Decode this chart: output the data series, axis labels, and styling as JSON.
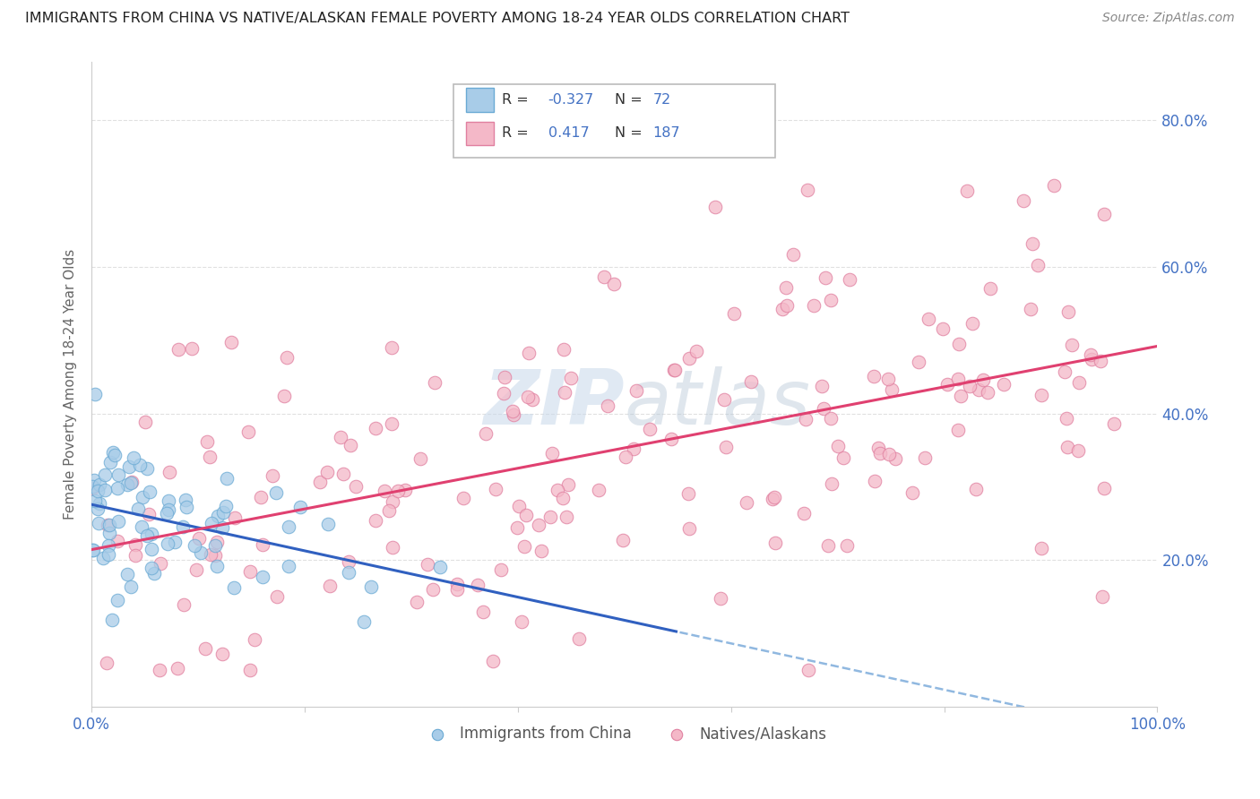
{
  "title": "IMMIGRANTS FROM CHINA VS NATIVE/ALASKAN FEMALE POVERTY AMONG 18-24 YEAR OLDS CORRELATION CHART",
  "source": "Source: ZipAtlas.com",
  "ylabel": "Female Poverty Among 18-24 Year Olds",
  "xlim": [
    0,
    1.0
  ],
  "ylim": [
    0.0,
    0.88
  ],
  "x_ticks": [
    0.0,
    0.2,
    0.4,
    0.6,
    0.8,
    1.0
  ],
  "x_tick_labels": [
    "0.0%",
    "",
    "",
    "",
    "",
    "100.0%"
  ],
  "y_ticks": [
    0.2,
    0.4,
    0.6,
    0.8
  ],
  "y_tick_labels": [
    "20.0%",
    "40.0%",
    "60.0%",
    "80.0%"
  ],
  "series1_color": "#a8cce8",
  "series1_edge": "#6aaad4",
  "series2_color": "#f4b8c8",
  "series2_edge": "#e080a0",
  "line1_color": "#3060c0",
  "line1_dashed_color": "#90b8e0",
  "line2_color": "#e04070",
  "legend_R1": "-0.327",
  "legend_N1": "72",
  "legend_R2": "0.417",
  "legend_N2": "187",
  "legend1_label": "Immigrants from China",
  "legend2_label": "Natives/Alaskans",
  "background_color": "#ffffff",
  "grid_color": "#e0e0e0",
  "watermark_color": "#c8d8ea",
  "title_color": "#222222",
  "source_color": "#888888",
  "tick_color": "#4472c4",
  "ylabel_color": "#666666"
}
